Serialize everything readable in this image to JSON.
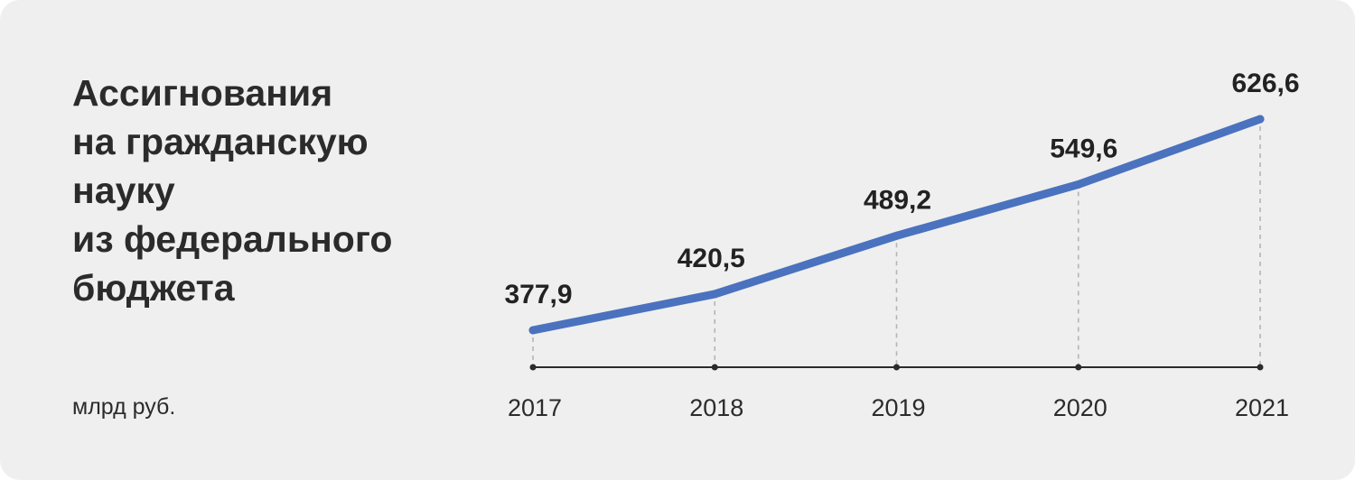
{
  "title_lines": [
    "Ассигнования",
    "на гражданскую",
    "науку",
    "из федерального",
    "бюджета"
  ],
  "unit_label": "млрд руб.",
  "chart_data": {
    "type": "line",
    "title": "Ассигнования на гражданскую науку из федерального бюджета",
    "xlabel": "",
    "ylabel": "млрд руб.",
    "categories": [
      "2017",
      "2018",
      "2019",
      "2020",
      "2021"
    ],
    "series": [
      {
        "values": [
          377.9,
          420.5,
          489.2,
          549.6,
          626.6
        ],
        "labels": [
          "377,9",
          "420,5",
          "489,2",
          "549,6",
          "626,6"
        ]
      }
    ],
    "grid": false,
    "legend": "none",
    "line_color": "#4a72be",
    "axis_color": "#2b2b2b",
    "guide_color": "#b4b4b4",
    "background": "#efefef"
  }
}
